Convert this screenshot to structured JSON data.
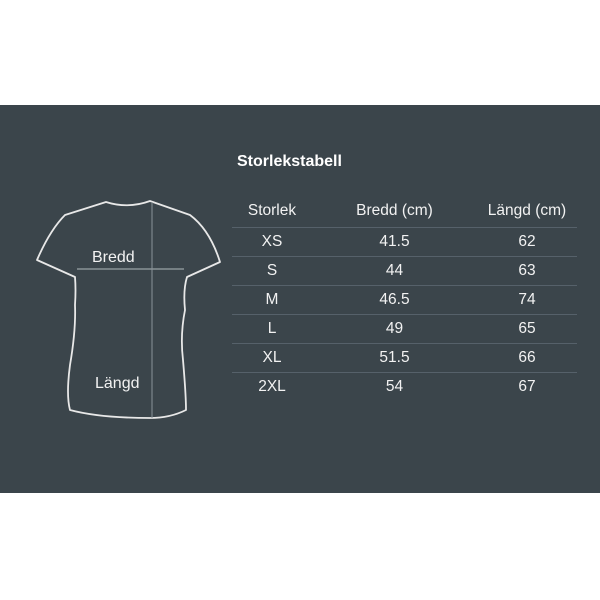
{
  "title": "Storlekstabell",
  "diagram": {
    "width_label": "Bredd",
    "length_label": "Längd"
  },
  "table": {
    "headers": [
      "Storlek",
      "Bredd (cm)",
      "Längd (cm)"
    ],
    "rows": [
      [
        "XS",
        "41.5",
        "62"
      ],
      [
        "S",
        "44",
        "63"
      ],
      [
        "M",
        "46.5",
        "74"
      ],
      [
        "L",
        "49",
        "65"
      ],
      [
        "XL",
        "51.5",
        "66"
      ],
      [
        "2XL",
        "54",
        "67"
      ]
    ]
  },
  "colors": {
    "background": "#3b454b",
    "text": "#f2f2f2"
  }
}
